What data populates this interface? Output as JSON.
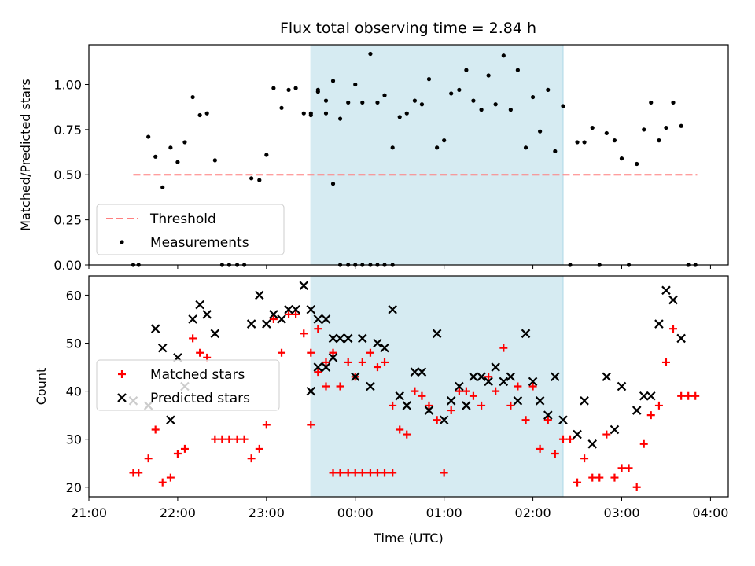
{
  "chart_data": [
    {
      "type": "scatter",
      "title": "Flux total observing time = 2.84 h",
      "ylabel": "Matched/Predicted stars",
      "xlabel": "",
      "x_units": "hours since 00:00 UTC (negative = previous day)",
      "xlim": [
        -3.0,
        4.2
      ],
      "ylim": [
        0,
        1.22
      ],
      "yticks": [
        "0.00",
        "0.25",
        "0.50",
        "0.75",
        "1.00"
      ],
      "ytick_values": [
        0,
        0.25,
        0.5,
        0.75,
        1.0
      ],
      "threshold": {
        "name": "Threshold",
        "value": 0.5,
        "x_range": [
          -2.5,
          3.85
        ],
        "color": "#ff7f7f"
      },
      "shaded_interval": [
        -0.5,
        2.34
      ],
      "legend": {
        "location": "lower left",
        "entries": [
          "Threshold",
          "Measurements"
        ]
      },
      "series": [
        {
          "name": "Measurements",
          "marker": "dot",
          "color": "#000000",
          "points": [
            [
              -2.5,
              0.0
            ],
            [
              -2.44,
              0.0
            ],
            [
              -2.33,
              0.71
            ],
            [
              -2.25,
              0.6
            ],
            [
              -2.17,
              0.43
            ],
            [
              -2.08,
              0.65
            ],
            [
              -2.0,
              0.57
            ],
            [
              -1.92,
              0.68
            ],
            [
              -1.83,
              0.93
            ],
            [
              -1.75,
              0.83
            ],
            [
              -1.67,
              0.84
            ],
            [
              -1.58,
              0.58
            ],
            [
              -1.5,
              0.0
            ],
            [
              -1.42,
              0.0
            ],
            [
              -1.33,
              0.0
            ],
            [
              -1.25,
              0.0
            ],
            [
              -1.17,
              0.48
            ],
            [
              -1.08,
              0.47
            ],
            [
              -1.0,
              0.61
            ],
            [
              -0.92,
              0.98
            ],
            [
              -0.83,
              0.87
            ],
            [
              -0.75,
              0.97
            ],
            [
              -0.67,
              0.98
            ],
            [
              -0.58,
              0.84
            ],
            [
              -0.5,
              0.84
            ],
            [
              -0.42,
              0.96
            ],
            [
              -0.33,
              0.84
            ],
            [
              -0.25,
              0.45
            ],
            [
              -0.17,
              0.0
            ],
            [
              -0.08,
              0.0
            ],
            [
              0.0,
              0.0
            ],
            [
              0.08,
              0.0
            ],
            [
              0.17,
              0.0
            ],
            [
              0.25,
              0.0
            ],
            [
              0.33,
              0.0
            ],
            [
              0.42,
              0.0
            ],
            [
              -0.5,
              0.83
            ],
            [
              -0.42,
              0.97
            ],
            [
              -0.33,
              0.91
            ],
            [
              -0.25,
              1.02
            ],
            [
              -0.17,
              0.81
            ],
            [
              -0.08,
              0.9
            ],
            [
              0.0,
              1.0
            ],
            [
              0.08,
              0.9
            ],
            [
              0.17,
              1.17
            ],
            [
              0.25,
              0.9
            ],
            [
              0.33,
              0.94
            ],
            [
              0.42,
              0.65
            ],
            [
              0.5,
              0.82
            ],
            [
              0.58,
              0.84
            ],
            [
              0.67,
              0.91
            ],
            [
              0.75,
              0.89
            ],
            [
              0.83,
              1.03
            ],
            [
              0.92,
              0.65
            ],
            [
              1.0,
              0.69
            ],
            [
              1.08,
              0.95
            ],
            [
              1.17,
              0.97
            ],
            [
              1.25,
              1.08
            ],
            [
              1.33,
              0.91
            ],
            [
              1.42,
              0.86
            ],
            [
              1.5,
              1.05
            ],
            [
              1.58,
              0.89
            ],
            [
              1.67,
              1.16
            ],
            [
              1.75,
              0.86
            ],
            [
              1.83,
              1.08
            ],
            [
              1.92,
              0.65
            ],
            [
              2.0,
              0.93
            ],
            [
              2.08,
              0.74
            ],
            [
              2.17,
              0.97
            ],
            [
              2.25,
              0.63
            ],
            [
              2.34,
              0.88
            ],
            [
              2.42,
              0.0
            ],
            [
              2.5,
              0.68
            ],
            [
              2.58,
              0.68
            ],
            [
              2.67,
              0.76
            ],
            [
              2.75,
              0.0
            ],
            [
              2.83,
              0.73
            ],
            [
              2.92,
              0.69
            ],
            [
              3.0,
              0.59
            ],
            [
              3.08,
              0.0
            ],
            [
              3.17,
              0.56
            ],
            [
              3.25,
              0.75
            ],
            [
              3.33,
              0.9
            ],
            [
              3.42,
              0.69
            ],
            [
              3.5,
              0.76
            ],
            [
              3.58,
              0.9
            ],
            [
              3.67,
              0.77
            ],
            [
              3.75,
              0.0
            ],
            [
              3.83,
              0.0
            ]
          ]
        }
      ]
    },
    {
      "type": "scatter",
      "title": "",
      "ylabel": "Count",
      "xlabel": "Time (UTC)",
      "x_units": "hours since 00:00 UTC (negative = previous day)",
      "xlim": [
        -3.0,
        4.2
      ],
      "ylim": [
        18,
        64
      ],
      "yticks": [
        "20",
        "30",
        "40",
        "50",
        "60"
      ],
      "ytick_values": [
        20,
        30,
        40,
        50,
        60
      ],
      "xticks": [
        "21:00",
        "22:00",
        "23:00",
        "00:00",
        "01:00",
        "02:00",
        "03:00",
        "04:00"
      ],
      "xtick_values": [
        -3,
        -2,
        -1,
        0,
        1,
        2,
        3,
        4
      ],
      "shaded_interval": [
        -0.5,
        2.34
      ],
      "legend": {
        "location": "center left",
        "entries": [
          "Matched stars",
          "Predicted stars"
        ]
      },
      "series": [
        {
          "name": "Matched stars",
          "marker": "plus",
          "color": "#ff0000",
          "points": [
            [
              -2.5,
              23
            ],
            [
              -2.44,
              23
            ],
            [
              -2.33,
              26
            ],
            [
              -2.25,
              32
            ],
            [
              -2.17,
              21
            ],
            [
              -2.08,
              22
            ],
            [
              -2.0,
              27
            ],
            [
              -1.92,
              28
            ],
            [
              -1.83,
              51
            ],
            [
              -1.75,
              48
            ],
            [
              -1.67,
              47
            ],
            [
              -1.58,
              30
            ],
            [
              -1.5,
              30
            ],
            [
              -1.42,
              30
            ],
            [
              -1.33,
              30
            ],
            [
              -1.25,
              30
            ],
            [
              -1.17,
              26
            ],
            [
              -1.08,
              28
            ],
            [
              -1.0,
              33
            ],
            [
              -0.92,
              55
            ],
            [
              -0.83,
              48
            ],
            [
              -0.75,
              56
            ],
            [
              -0.67,
              56
            ],
            [
              -0.58,
              52
            ],
            [
              -0.5,
              48
            ],
            [
              -0.42,
              53
            ],
            [
              -0.33,
              46
            ],
            [
              -0.25,
              23
            ],
            [
              -0.17,
              23
            ],
            [
              -0.08,
              23
            ],
            [
              0.0,
              23
            ],
            [
              0.08,
              23
            ],
            [
              0.17,
              23
            ],
            [
              0.25,
              23
            ],
            [
              0.33,
              23
            ],
            [
              0.42,
              23
            ],
            [
              -0.5,
              33
            ],
            [
              -0.42,
              44
            ],
            [
              -0.33,
              41
            ],
            [
              -0.25,
              48
            ],
            [
              -0.17,
              41
            ],
            [
              -0.08,
              46
            ],
            [
              0.0,
              43
            ],
            [
              0.08,
              46
            ],
            [
              0.17,
              48
            ],
            [
              0.25,
              45
            ],
            [
              0.33,
              46
            ],
            [
              0.42,
              37
            ],
            [
              0.5,
              32
            ],
            [
              0.58,
              31
            ],
            [
              0.67,
              40
            ],
            [
              0.75,
              39
            ],
            [
              0.83,
              37
            ],
            [
              0.92,
              34
            ],
            [
              1.0,
              23
            ],
            [
              1.08,
              36
            ],
            [
              1.17,
              40
            ],
            [
              1.25,
              40
            ],
            [
              1.33,
              39
            ],
            [
              1.42,
              37
            ],
            [
              1.5,
              43
            ],
            [
              1.58,
              40
            ],
            [
              1.67,
              49
            ],
            [
              1.75,
              37
            ],
            [
              1.83,
              41
            ],
            [
              1.92,
              34
            ],
            [
              2.0,
              41
            ],
            [
              2.08,
              28
            ],
            [
              2.17,
              34
            ],
            [
              2.25,
              27
            ],
            [
              2.34,
              30
            ],
            [
              2.42,
              30
            ],
            [
              2.5,
              21
            ],
            [
              2.58,
              26
            ],
            [
              2.67,
              22
            ],
            [
              2.75,
              22
            ],
            [
              2.83,
              31
            ],
            [
              2.92,
              22
            ],
            [
              3.0,
              24
            ],
            [
              3.08,
              24
            ],
            [
              3.17,
              20
            ],
            [
              3.25,
              29
            ],
            [
              3.33,
              35
            ],
            [
              3.42,
              37
            ],
            [
              3.5,
              46
            ],
            [
              3.58,
              53
            ],
            [
              3.67,
              39
            ],
            [
              3.75,
              39
            ],
            [
              3.83,
              39
            ]
          ]
        },
        {
          "name": "Predicted stars",
          "marker": "x",
          "color": "#000000",
          "points": [
            [
              -2.5,
              38
            ],
            [
              -2.33,
              37
            ],
            [
              -2.25,
              53
            ],
            [
              -2.17,
              49
            ],
            [
              -2.08,
              34
            ],
            [
              -2.0,
              47
            ],
            [
              -1.92,
              41
            ],
            [
              -1.83,
              55
            ],
            [
              -1.75,
              58
            ],
            [
              -1.67,
              56
            ],
            [
              -1.58,
              52
            ],
            [
              -1.17,
              54
            ],
            [
              -1.08,
              60
            ],
            [
              -1.0,
              54
            ],
            [
              -0.92,
              56
            ],
            [
              -0.83,
              55
            ],
            [
              -0.75,
              57
            ],
            [
              -0.67,
              57
            ],
            [
              -0.58,
              62
            ],
            [
              -0.5,
              57
            ],
            [
              -0.42,
              55
            ],
            [
              -0.33,
              55
            ],
            [
              -0.25,
              51
            ],
            [
              -0.5,
              40
            ],
            [
              -0.42,
              45
            ],
            [
              -0.33,
              45
            ],
            [
              -0.25,
              47
            ],
            [
              -0.17,
              51
            ],
            [
              -0.08,
              51
            ],
            [
              0.0,
              43
            ],
            [
              0.08,
              51
            ],
            [
              0.17,
              41
            ],
            [
              0.25,
              50
            ],
            [
              0.33,
              49
            ],
            [
              0.42,
              57
            ],
            [
              0.5,
              39
            ],
            [
              0.58,
              37
            ],
            [
              0.67,
              44
            ],
            [
              0.75,
              44
            ],
            [
              0.83,
              36
            ],
            [
              0.92,
              52
            ],
            [
              1.0,
              34
            ],
            [
              1.08,
              38
            ],
            [
              1.17,
              41
            ],
            [
              1.25,
              37
            ],
            [
              1.33,
              43
            ],
            [
              1.42,
              43
            ],
            [
              1.5,
              42
            ],
            [
              1.58,
              45
            ],
            [
              1.67,
              42
            ],
            [
              1.75,
              43
            ],
            [
              1.83,
              38
            ],
            [
              1.92,
              52
            ],
            [
              2.0,
              42
            ],
            [
              2.08,
              38
            ],
            [
              2.17,
              35
            ],
            [
              2.25,
              43
            ],
            [
              2.34,
              34
            ],
            [
              2.5,
              31
            ],
            [
              2.58,
              38
            ],
            [
              2.67,
              29
            ],
            [
              2.83,
              43
            ],
            [
              2.92,
              32
            ],
            [
              3.0,
              41
            ],
            [
              3.17,
              36
            ],
            [
              3.25,
              39
            ],
            [
              3.33,
              39
            ],
            [
              3.42,
              54
            ],
            [
              3.5,
              61
            ],
            [
              3.58,
              59
            ],
            [
              3.67,
              51
            ]
          ]
        }
      ]
    }
  ],
  "colors": {
    "shade": "#add8e6",
    "threshold": "#ff7f7f",
    "matched": "#ff0000",
    "predicted": "#000000"
  }
}
